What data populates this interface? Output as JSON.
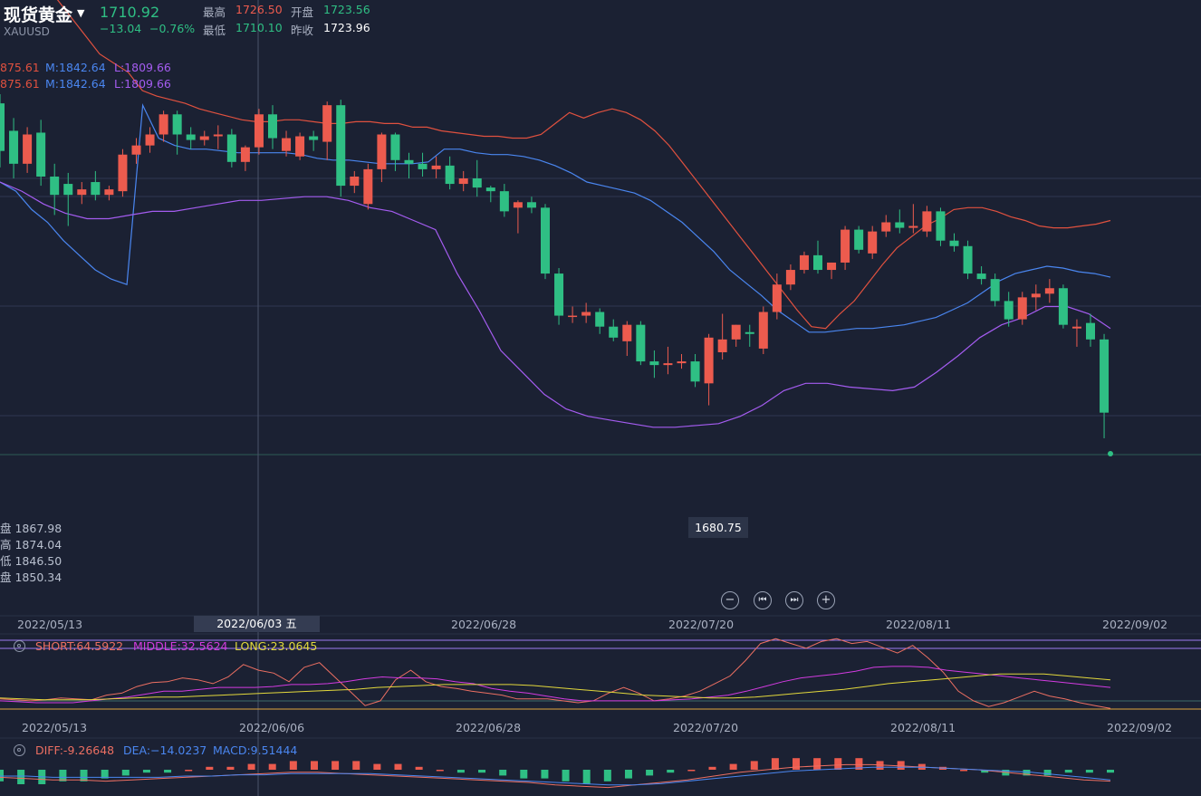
{
  "header": {
    "title": "现货黄金",
    "symbol": "XAUUSD",
    "price": "1710.92",
    "change": "−13.04",
    "change_pct": "−0.76%",
    "stats": [
      {
        "label": "最高",
        "value": "1726.50",
        "color": "red"
      },
      {
        "label": "开盘",
        "value": "1723.56",
        "color": "green"
      },
      {
        "label": "最低",
        "value": "1710.10",
        "color": "green"
      },
      {
        "label": "昨收",
        "value": "1723.96",
        "color": "white"
      }
    ]
  },
  "boll_legend_1": {
    "u": "875.61",
    "m": "M:1842.64",
    "l": "L:1809.66"
  },
  "boll_legend_2": {
    "u": "875.61",
    "m": "M:1842.64",
    "l": "L:1809.66"
  },
  "ohlc_readout": [
    "盘 1867.98",
    "高 1874.04",
    "低 1846.50",
    "盘 1850.34"
  ],
  "low_tag": "1680.75",
  "main_dates": [
    "2022/05/13",
    "2022/06/28",
    "2022/07/20",
    "2022/08/11",
    "2022/09/02"
  ],
  "cursor_date": "2022/06/03 五",
  "sub_dates": [
    "2022/05/13",
    "2022/06/06",
    "2022/06/28",
    "2022/07/20",
    "2022/08/11",
    "2022/09/02"
  ],
  "ind1_legend": {
    "short": "SHORT:64.5922",
    "middle": "MIDDLE:32.5624",
    "long": "LONG:23.0645"
  },
  "ind2_legend": {
    "diff": "DIFF:-9.26648",
    "dea": "DEA:−14.0237",
    "macd": "MACD:9.51444"
  },
  "controls": {
    "zoom_out": "−",
    "prev": "⏮",
    "next": "⏭",
    "zoom_in": "+"
  },
  "colors": {
    "up": "#ec5b4e",
    "down": "#2fbf84",
    "upper": "#e0513f",
    "middle": "#4a86f0",
    "lower": "#a45cf0",
    "short": "#ec6f62",
    "mid": "#d23be0",
    "long": "#e2d83c",
    "bg": "#1b2133",
    "grid": "#2a3145"
  },
  "chart_data": {
    "type": "candlestick",
    "title": "现货黄金 XAUUSD",
    "ylim": [
      1660,
      1900
    ],
    "candles": [
      {
        "o": 1893,
        "h": 1898,
        "c": 1867,
        "l": 1858
      },
      {
        "o": 1878,
        "h": 1885,
        "c": 1860,
        "l": 1852
      },
      {
        "o": 1860,
        "h": 1880,
        "c": 1876,
        "l": 1855
      },
      {
        "o": 1877,
        "h": 1884,
        "c": 1853,
        "l": 1848
      },
      {
        "o": 1853,
        "h": 1860,
        "c": 1843,
        "l": 1832
      },
      {
        "o": 1849,
        "h": 1855,
        "c": 1843,
        "l": 1826
      },
      {
        "o": 1843,
        "h": 1850,
        "c": 1846,
        "l": 1838
      },
      {
        "o": 1850,
        "h": 1856,
        "c": 1843,
        "l": 1840
      },
      {
        "o": 1843,
        "h": 1848,
        "c": 1846,
        "l": 1840
      },
      {
        "o": 1845,
        "h": 1868,
        "c": 1865,
        "l": 1842
      },
      {
        "o": 1865,
        "h": 1874,
        "c": 1870,
        "l": 1860
      },
      {
        "o": 1870,
        "h": 1880,
        "c": 1876,
        "l": 1866
      },
      {
        "o": 1876,
        "h": 1889,
        "c": 1887,
        "l": 1872
      },
      {
        "o": 1887,
        "h": 1889,
        "c": 1876,
        "l": 1865
      },
      {
        "o": 1876,
        "h": 1880,
        "c": 1873,
        "l": 1868
      },
      {
        "o": 1873,
        "h": 1878,
        "c": 1875,
        "l": 1870
      },
      {
        "o": 1875,
        "h": 1881,
        "c": 1876,
        "l": 1868
      },
      {
        "o": 1876,
        "h": 1879,
        "c": 1861,
        "l": 1858
      },
      {
        "o": 1861,
        "h": 1870,
        "c": 1869,
        "l": 1856
      },
      {
        "o": 1869,
        "h": 1890,
        "c": 1887,
        "l": 1865
      },
      {
        "o": 1887,
        "h": 1892,
        "c": 1874,
        "l": 1868
      },
      {
        "o": 1867,
        "h": 1878,
        "c": 1874,
        "l": 1864
      },
      {
        "o": 1864,
        "h": 1877,
        "c": 1875,
        "l": 1862
      },
      {
        "o": 1875,
        "h": 1878,
        "c": 1873,
        "l": 1867
      },
      {
        "o": 1872,
        "h": 1894,
        "c": 1892,
        "l": 1862
      },
      {
        "o": 1892,
        "h": 1895,
        "c": 1848,
        "l": 1842
      },
      {
        "o": 1848,
        "h": 1856,
        "c": 1853,
        "l": 1844
      },
      {
        "o": 1838,
        "h": 1860,
        "c": 1857,
        "l": 1835
      },
      {
        "o": 1857,
        "h": 1877,
        "c": 1876,
        "l": 1850
      },
      {
        "o": 1876,
        "h": 1877,
        "c": 1862,
        "l": 1856
      },
      {
        "o": 1862,
        "h": 1866,
        "c": 1860,
        "l": 1852
      },
      {
        "o": 1860,
        "h": 1866,
        "c": 1857,
        "l": 1853
      },
      {
        "o": 1857,
        "h": 1864,
        "c": 1859,
        "l": 1852
      },
      {
        "o": 1859,
        "h": 1864,
        "c": 1849,
        "l": 1846
      },
      {
        "o": 1849,
        "h": 1856,
        "c": 1852,
        "l": 1845
      },
      {
        "o": 1852,
        "h": 1862,
        "c": 1847,
        "l": 1842
      },
      {
        "o": 1847,
        "h": 1848,
        "c": 1845,
        "l": 1839
      },
      {
        "o": 1845,
        "h": 1849,
        "c": 1834,
        "l": 1831
      },
      {
        "o": 1836,
        "h": 1840,
        "c": 1839,
        "l": 1822
      },
      {
        "o": 1839,
        "h": 1842,
        "c": 1836,
        "l": 1833
      },
      {
        "o": 1836,
        "h": 1838,
        "c": 1800,
        "l": 1797
      },
      {
        "o": 1800,
        "h": 1803,
        "c": 1777,
        "l": 1772
      },
      {
        "o": 1777,
        "h": 1782,
        "c": 1777,
        "l": 1773
      },
      {
        "o": 1777,
        "h": 1784,
        "c": 1779,
        "l": 1773
      },
      {
        "o": 1779,
        "h": 1781,
        "c": 1771,
        "l": 1767
      },
      {
        "o": 1771,
        "h": 1775,
        "c": 1765,
        "l": 1763
      },
      {
        "o": 1763,
        "h": 1774,
        "c": 1772,
        "l": 1755
      },
      {
        "o": 1772,
        "h": 1774,
        "c": 1752,
        "l": 1750
      },
      {
        "o": 1752,
        "h": 1758,
        "c": 1750,
        "l": 1743
      },
      {
        "o": 1750,
        "h": 1760,
        "c": 1751,
        "l": 1745
      },
      {
        "o": 1751,
        "h": 1756,
        "c": 1752,
        "l": 1748
      },
      {
        "o": 1752,
        "h": 1756,
        "c": 1741,
        "l": 1738
      },
      {
        "o": 1740,
        "h": 1767,
        "c": 1765,
        "l": 1728
      },
      {
        "o": 1757,
        "h": 1778,
        "c": 1764,
        "l": 1753
      },
      {
        "o": 1764,
        "h": 1772,
        "c": 1772,
        "l": 1760
      },
      {
        "o": 1768,
        "h": 1772,
        "c": 1767,
        "l": 1760
      },
      {
        "o": 1759,
        "h": 1782,
        "c": 1779,
        "l": 1756
      },
      {
        "o": 1779,
        "h": 1800,
        "c": 1794,
        "l": 1775
      },
      {
        "o": 1794,
        "h": 1805,
        "c": 1802,
        "l": 1791
      },
      {
        "o": 1802,
        "h": 1812,
        "c": 1810,
        "l": 1800
      },
      {
        "o": 1810,
        "h": 1818,
        "c": 1802,
        "l": 1800
      },
      {
        "o": 1802,
        "h": 1806,
        "c": 1806,
        "l": 1797
      },
      {
        "o": 1806,
        "h": 1826,
        "c": 1824,
        "l": 1802
      },
      {
        "o": 1824,
        "h": 1826,
        "c": 1813,
        "l": 1811
      },
      {
        "o": 1811,
        "h": 1826,
        "c": 1823,
        "l": 1808
      },
      {
        "o": 1823,
        "h": 1832,
        "c": 1828,
        "l": 1820
      },
      {
        "o": 1828,
        "h": 1835,
        "c": 1825,
        "l": 1822
      },
      {
        "o": 1825,
        "h": 1838,
        "c": 1826,
        "l": 1822
      },
      {
        "o": 1823,
        "h": 1837,
        "c": 1834,
        "l": 1820
      },
      {
        "o": 1834,
        "h": 1836,
        "c": 1818,
        "l": 1815
      },
      {
        "o": 1818,
        "h": 1822,
        "c": 1815,
        "l": 1812
      },
      {
        "o": 1815,
        "h": 1818,
        "c": 1800,
        "l": 1797
      },
      {
        "o": 1800,
        "h": 1804,
        "c": 1797,
        "l": 1794
      },
      {
        "o": 1797,
        "h": 1800,
        "c": 1785,
        "l": 1782
      },
      {
        "o": 1785,
        "h": 1790,
        "c": 1775,
        "l": 1771
      },
      {
        "o": 1775,
        "h": 1790,
        "c": 1787,
        "l": 1772
      },
      {
        "o": 1787,
        "h": 1794,
        "c": 1789,
        "l": 1780
      },
      {
        "o": 1789,
        "h": 1797,
        "c": 1792,
        "l": 1784
      },
      {
        "o": 1792,
        "h": 1794,
        "c": 1772,
        "l": 1770
      },
      {
        "o": 1770,
        "h": 1775,
        "c": 1771,
        "l": 1760
      },
      {
        "o": 1773,
        "h": 1778,
        "c": 1764,
        "l": 1760
      },
      {
        "o": 1764,
        "h": 1767,
        "c": 1724,
        "l": 1710
      }
    ],
    "upper_band": [
      1990,
      1980,
      1970,
      1960,
      1950,
      1940,
      1930,
      1920,
      1915,
      1910,
      1900,
      1897,
      1895,
      1893,
      1890,
      1888,
      1886,
      1884,
      1883,
      1883,
      1884,
      1884,
      1883,
      1882,
      1882,
      1883,
      1883,
      1882,
      1882,
      1880,
      1880,
      1878,
      1877,
      1876,
      1875,
      1875,
      1874,
      1874,
      1876,
      1882,
      1888,
      1885,
      1888,
      1890,
      1888,
      1884,
      1878,
      1870,
      1860,
      1850,
      1840,
      1830,
      1820,
      1810,
      1800,
      1790,
      1780,
      1771,
      1770,
      1778,
      1785,
      1795,
      1805,
      1814,
      1820,
      1826,
      1830,
      1835,
      1836,
      1836,
      1834,
      1831,
      1829,
      1826,
      1825,
      1825,
      1826,
      1827,
      1829
    ],
    "middle_band": [
      1850,
      1845,
      1835,
      1828,
      1818,
      1810,
      1802,
      1797,
      1794,
      1892,
      1874,
      1870,
      1868,
      1868,
      1867,
      1866,
      1866,
      1866,
      1866,
      1865,
      1863,
      1862,
      1862,
      1861,
      1860,
      1860,
      1860,
      1861,
      1868,
      1868,
      1866,
      1865,
      1865,
      1864,
      1862,
      1859,
      1855,
      1850,
      1848,
      1846,
      1844,
      1840,
      1834,
      1828,
      1820,
      1812,
      1802,
      1795,
      1788,
      1780,
      1774,
      1768,
      1768,
      1769,
      1770,
      1770,
      1771,
      1772,
      1774,
      1776,
      1780,
      1784,
      1790,
      1796,
      1800,
      1802,
      1804,
      1803,
      1801,
      1800,
      1798
    ],
    "lower_band": [
      1850,
      1845,
      1838,
      1833,
      1830,
      1830,
      1832,
      1834,
      1834,
      1836,
      1838,
      1840,
      1840,
      1841,
      1842,
      1842,
      1840,
      1836,
      1834,
      1829,
      1824,
      1800,
      1780,
      1758,
      1746,
      1734,
      1726,
      1722,
      1720,
      1718,
      1716,
      1716,
      1717,
      1718,
      1722,
      1728,
      1736,
      1740,
      1740,
      1738,
      1737,
      1736,
      1738,
      1746,
      1755,
      1765,
      1772,
      1776,
      1782,
      1782,
      1778,
      1770
    ],
    "ind1": {
      "short": [
        22,
        21,
        20,
        21,
        23,
        22,
        21,
        26,
        28,
        35,
        39,
        40,
        44,
        42,
        38,
        45,
        58,
        52,
        49,
        40,
        55,
        60,
        45,
        30,
        15,
        20,
        42,
        52,
        40,
        35,
        33,
        30,
        28,
        26,
        22,
        22,
        22,
        20,
        18,
        20,
        28,
        34,
        28,
        20,
        22,
        25,
        30,
        38,
        46,
        62,
        80,
        85,
        80,
        75,
        82,
        85,
        80,
        82,
        76,
        70,
        78,
        65,
        50,
        30,
        20,
        14,
        18,
        24,
        30,
        25,
        22,
        18,
        15,
        12
      ],
      "middle": [
        20,
        19,
        18,
        18,
        18,
        20,
        22,
        24,
        27,
        30,
        30,
        32,
        34,
        34,
        34,
        35,
        37,
        37,
        38,
        40,
        43,
        45,
        44,
        44,
        43,
        40,
        38,
        33,
        30,
        28,
        25,
        22,
        20,
        20,
        20,
        20,
        20,
        21,
        22,
        24,
        26,
        30,
        35,
        40,
        44,
        46,
        48,
        51,
        55,
        56,
        56,
        55,
        52,
        50,
        48,
        46,
        44,
        42,
        40,
        38,
        36,
        34
      ],
      "long": [
        23,
        22,
        21,
        21,
        21,
        22,
        23,
        24,
        24,
        25,
        26,
        27,
        28,
        29,
        30,
        31,
        32,
        34,
        35,
        36,
        37,
        37,
        37,
        37,
        36,
        34,
        32,
        30,
        28,
        26,
        25,
        24,
        23,
        23,
        24,
        26,
        28,
        30,
        32,
        35,
        38,
        40,
        42,
        44,
        46,
        48,
        48,
        48,
        46,
        44,
        42
      ],
      "diff": [
        -6,
        -7,
        -8,
        -8,
        -9,
        -8,
        -7,
        -6,
        -5,
        -4,
        -3,
        -2,
        -2,
        -3,
        -4,
        -5,
        -6,
        -7,
        -8,
        -9,
        -10,
        -12,
        -13,
        -14,
        -12,
        -10,
        -8,
        -5,
        -2,
        0,
        2,
        3,
        4,
        4,
        3,
        2,
        1,
        0,
        -2,
        -4,
        -6,
        -8,
        -9
      ],
      "dea": [
        -5,
        -5,
        -6,
        -6,
        -6,
        -6,
        -6,
        -5,
        -5,
        -4,
        -4,
        -3,
        -3,
        -3,
        -3,
        -4,
        -5,
        -6,
        -7,
        -8,
        -9,
        -10,
        -11,
        -12,
        -12,
        -11,
        -9,
        -7,
        -5,
        -3,
        -1,
        0,
        1,
        2,
        2,
        2,
        1,
        0,
        -1,
        -2,
        -4,
        -6,
        -8
      ],
      "macd": [
        -4,
        -5,
        -5,
        -4,
        -4,
        -3,
        -2,
        -1,
        -1,
        0,
        1,
        1,
        2,
        2,
        3,
        3,
        3,
        3,
        2,
        2,
        1,
        0,
        -1,
        -1,
        -2,
        -3,
        -3,
        -4,
        -5,
        -4,
        -3,
        -2,
        -1,
        0,
        1,
        2,
        3,
        4,
        4,
        4,
        4,
        4,
        3,
        3,
        2,
        1,
        0,
        -1,
        -2,
        -2,
        -2,
        -1,
        -1,
        -1
      ]
    }
  }
}
